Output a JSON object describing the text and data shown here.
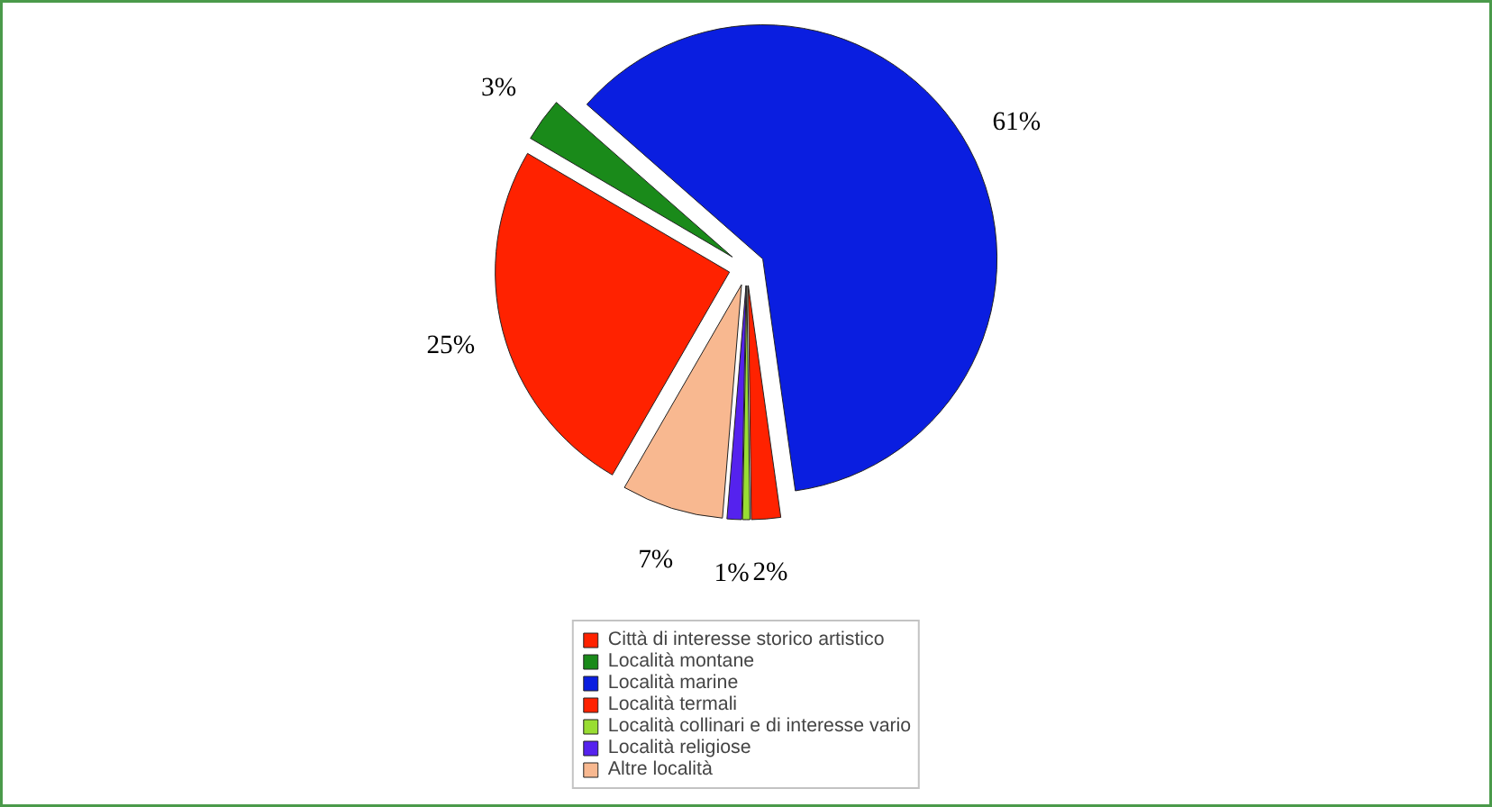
{
  "chart_data": {
    "type": "pie",
    "categories": [
      "Città di interesse storico artistico",
      "Località montane",
      "Località marine",
      "Località termali",
      "Località collinari e di interesse vario",
      "Località religiose",
      "Altre località"
    ],
    "values": [
      25,
      3,
      61,
      2,
      0.5,
      1,
      7
    ],
    "value_labels": [
      "25%",
      "3%",
      "61%",
      "2%",
      null,
      "1%",
      "7%"
    ],
    "colors": [
      "#ff2200",
      "#1a8a1a",
      "#0a1ee0",
      "#ff2200",
      "#99dd33",
      "#5522ee",
      "#f8b890"
    ],
    "legend": "bottom"
  }
}
